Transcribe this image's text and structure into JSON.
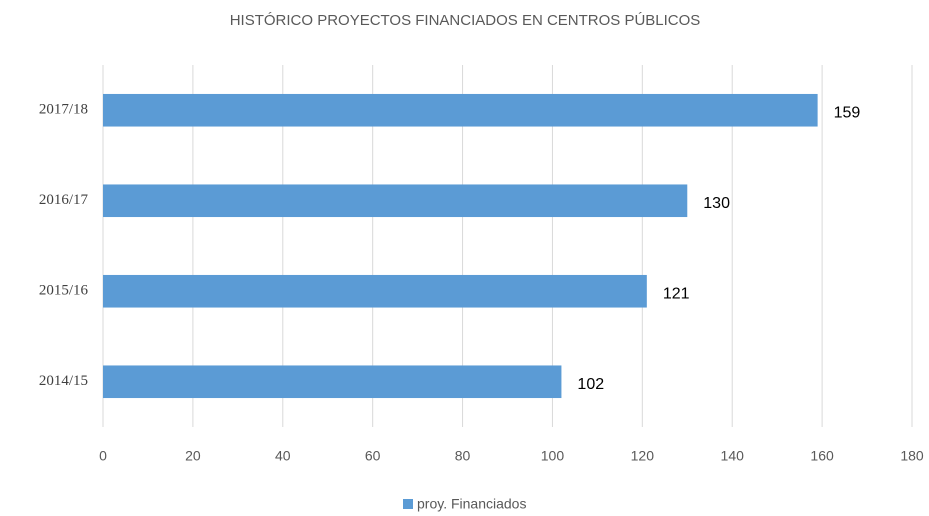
{
  "chart_data": {
    "type": "bar",
    "orientation": "horizontal",
    "title": "HISTÓRICO PROYECTOS FINANCIADOS EN CENTROS PÚBLICOS",
    "categories": [
      "2014/15",
      "2015/16",
      "2016/17",
      "2017/18"
    ],
    "series": [
      {
        "name": "proy. Financiados",
        "color": "#5b9bd5",
        "values": [
          102,
          121,
          130,
          159
        ]
      }
    ],
    "xlim": [
      0,
      180
    ],
    "xticks": [
      0,
      20,
      40,
      60,
      80,
      100,
      120,
      140,
      160,
      180
    ],
    "grid": true,
    "legend": "bottom"
  }
}
